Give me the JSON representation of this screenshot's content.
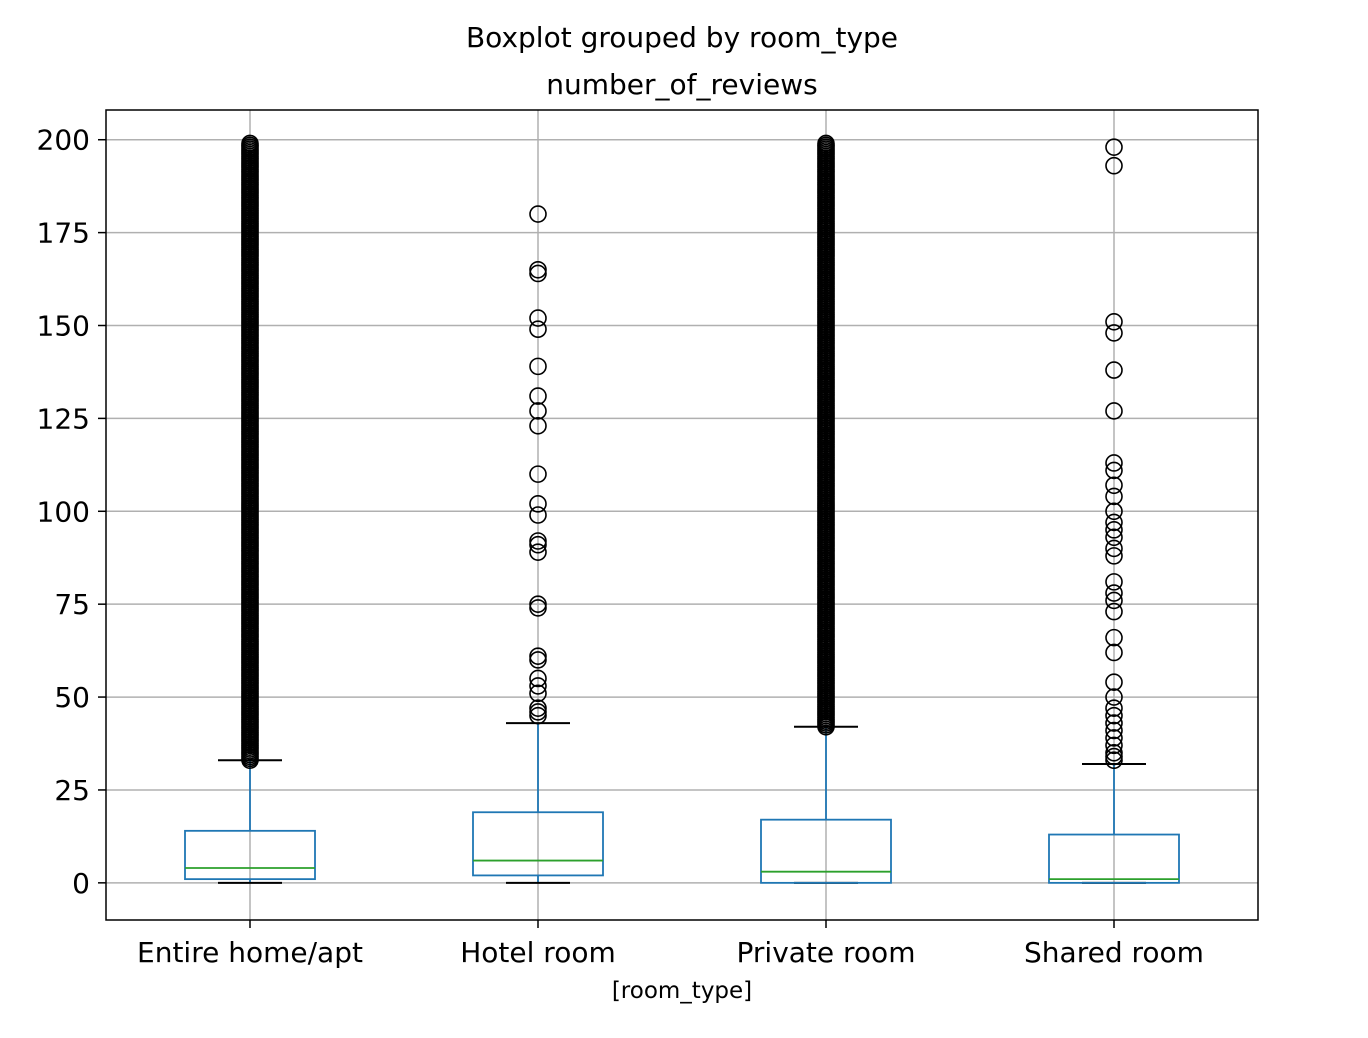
{
  "chart_data": {
    "type": "boxplot",
    "suptitle": "Boxplot grouped by room_type",
    "title": "number_of_reviews",
    "xlabel": "[room_type]",
    "ylabel": "",
    "ylim": [
      -10,
      208
    ],
    "yticks": [
      0,
      25,
      50,
      75,
      100,
      125,
      150,
      175,
      200
    ],
    "grid": true,
    "colors": {
      "box": "#1f77b4",
      "median": "#2ca02c",
      "whisker_cap": "#000000",
      "flier": "#000000",
      "grid": "#b0b0b0"
    },
    "categories": [
      "Entire home/apt",
      "Hotel room",
      "Private room",
      "Shared room"
    ],
    "boxes": [
      {
        "label": "Entire home/apt",
        "whislo": 0,
        "q1": 1,
        "median": 4,
        "q3": 14,
        "whishi": 33,
        "fliers_dense_range": [
          33,
          199
        ],
        "fliers": []
      },
      {
        "label": "Hotel room",
        "whislo": 0,
        "q1": 2,
        "median": 6,
        "q3": 19,
        "whishi": 43,
        "fliers_dense_range": null,
        "fliers": [
          45,
          46,
          47,
          51,
          53,
          55,
          60,
          61,
          74,
          75,
          89,
          91,
          92,
          99,
          102,
          110,
          123,
          127,
          131,
          139,
          149,
          152,
          164,
          165,
          180
        ]
      },
      {
        "label": "Private room",
        "whislo": 0,
        "q1": 0,
        "median": 3,
        "q3": 17,
        "whishi": 42,
        "fliers_dense_range": [
          42,
          199
        ],
        "fliers": []
      },
      {
        "label": "Shared room",
        "whislo": 0,
        "q1": 0,
        "median": 1,
        "q3": 13,
        "whishi": 32,
        "fliers_dense_range": null,
        "fliers": [
          33,
          34,
          35,
          37,
          39,
          41,
          43,
          45,
          47,
          50,
          54,
          62,
          66,
          73,
          76,
          78,
          81,
          88,
          90,
          93,
          95,
          97,
          100,
          104,
          107,
          111,
          113,
          127,
          138,
          148,
          151,
          193,
          198
        ]
      }
    ]
  }
}
